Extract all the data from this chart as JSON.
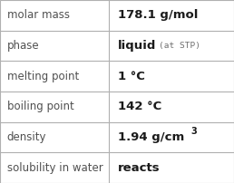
{
  "rows": [
    {
      "label": "molar mass",
      "value": "178.1 g/mol",
      "superscript": null,
      "extra": null
    },
    {
      "label": "phase",
      "value": "liquid",
      "superscript": null,
      "extra": "(at STP)"
    },
    {
      "label": "melting point",
      "value": "1 °C",
      "superscript": null,
      "extra": null
    },
    {
      "label": "boiling point",
      "value": "142 °C",
      "superscript": null,
      "extra": null
    },
    {
      "label": "density",
      "value": "1.94 g/cm",
      "superscript": "3",
      "extra": null
    },
    {
      "label": "solubility in water",
      "value": "reacts",
      "superscript": null,
      "extra": null
    }
  ],
  "bg_color": "#ffffff",
  "border_color": "#b0b0b0",
  "label_color": "#505050",
  "value_color": "#1a1a1a",
  "extra_color": "#707070",
  "label_fontsize": 8.5,
  "value_fontsize": 9.5,
  "extra_fontsize": 6.8,
  "sup_fontsize": 7.0,
  "col_split": 0.465
}
